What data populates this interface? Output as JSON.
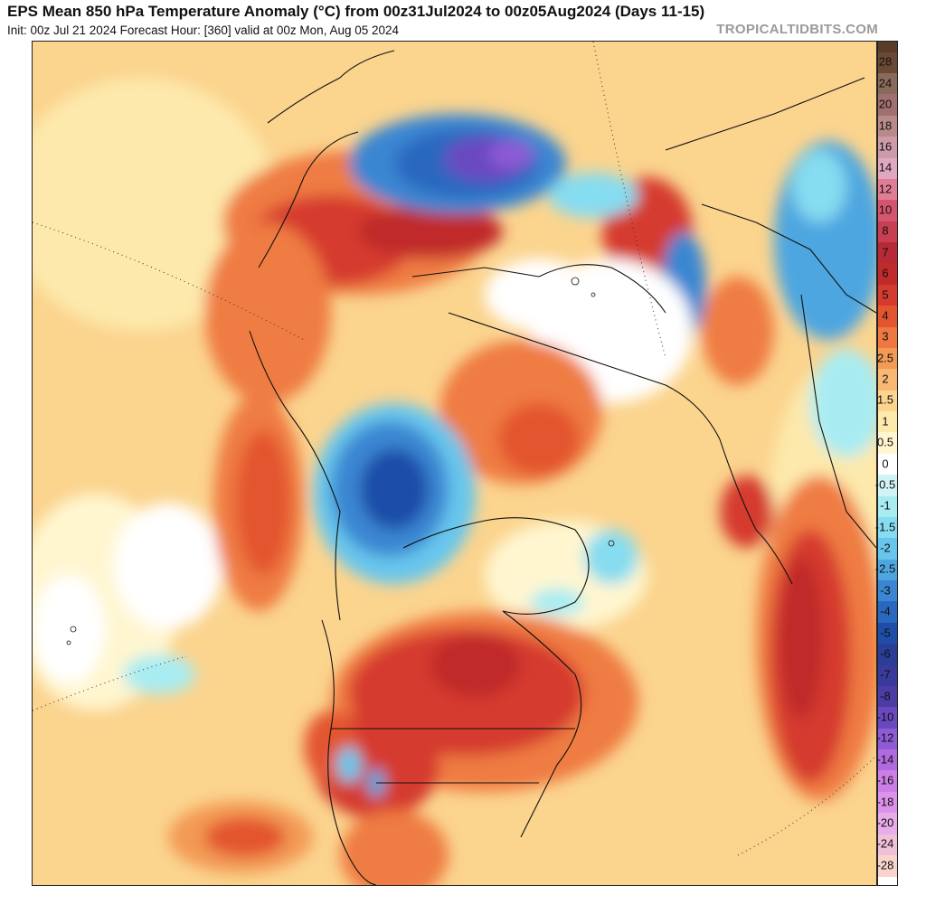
{
  "header": {
    "title": "EPS Mean 850 hPa Temperature Anomaly (°C) from 00z31Jul2024 to 00z05Aug2024 (Days 11-15)",
    "subtitle": "Init: 00z Jul 21 2024   Forecast Hour: [360]   valid at 00z Mon, Aug 05 2024",
    "brand": "TROPICALTIDBITS.COM"
  },
  "colorbar": {
    "labels": [
      "28",
      "24",
      "20",
      "18",
      "16",
      "14",
      "12",
      "10",
      "8",
      "7",
      "6",
      "5",
      "4",
      "3",
      "2.5",
      "2",
      "1.5",
      "1",
      "0.5",
      "0",
      "-0.5",
      "-1",
      "-1.5",
      "-2",
      "-2.5",
      "-3",
      "-4",
      "-5",
      "-6",
      "-7",
      "-8",
      "-10",
      "-12",
      "-14",
      "-16",
      "-18",
      "-20",
      "-24",
      "-28"
    ],
    "colors": [
      "#6b4a35",
      "#8a6a5a",
      "#a07070",
      "#b88a8a",
      "#cc9aa8",
      "#e0a8c0",
      "#e07d94",
      "#d4566e",
      "#c83e52",
      "#b52a36",
      "#c02a2a",
      "#d43b2e",
      "#e3552f",
      "#ee7840",
      "#f39a55",
      "#f8b874",
      "#fbd48e",
      "#fde9ac",
      "#fff6d0",
      "#ffffff",
      "#d0f4f6",
      "#a8ecf2",
      "#86dcf0",
      "#68c6ec",
      "#4ea6e0",
      "#3a86d2",
      "#2a68bf",
      "#1e4ea8",
      "#2a3e98",
      "#3a3a9c",
      "#4c3ca6",
      "#6a48c0",
      "#8e5ad6",
      "#b06ae0",
      "#cc7ee6",
      "#dc92e8",
      "#e8acea",
      "#f0c0d8",
      "#f8d4cc"
    ]
  },
  "map": {
    "description_colors": {
      "warm_strong": "#d53a2e",
      "warm": "#ef7b42",
      "mild": "#fbd48e",
      "cold": "#2a68bf",
      "cold_strong": "#6a48c0"
    }
  }
}
